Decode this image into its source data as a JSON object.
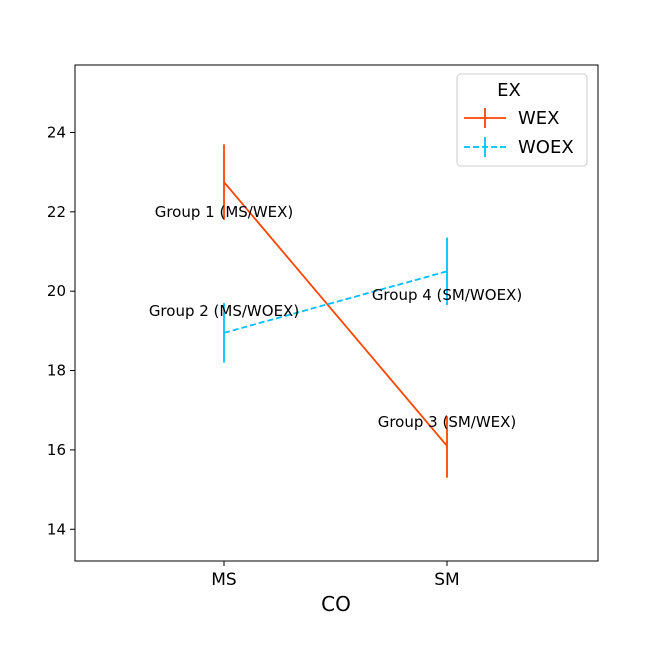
{
  "chart_data": {
    "type": "line",
    "title": "",
    "xlabel": "CO",
    "ylabel": "",
    "categories": [
      "MS",
      "SM"
    ],
    "ylim": [
      13.2,
      25.7
    ],
    "yticks": [
      14,
      16,
      18,
      20,
      22,
      24
    ],
    "grid": false,
    "legend": {
      "title": "EX",
      "placement": "top-right"
    },
    "series": [
      {
        "name": "WEX",
        "color": "#ff4500",
        "linestyle": "solid",
        "values": [
          22.75,
          16.1
        ],
        "errors": [
          [
            21.8,
            23.7
          ],
          [
            15.3,
            16.85
          ]
        ]
      },
      {
        "name": "WOEX",
        "color": "#00bfff",
        "linestyle": "dashed",
        "values": [
          18.95,
          20.5
        ],
        "errors": [
          [
            18.2,
            19.7
          ],
          [
            19.65,
            21.35
          ]
        ]
      }
    ],
    "annotations": [
      {
        "text": "Group 1 (MS/WEX)",
        "category": "MS",
        "y": 22.0
      },
      {
        "text": "Group 2 (MS/WOEX)",
        "category": "MS",
        "y": 19.5
      },
      {
        "text": "Group 3 (SM/WEX)",
        "category": "SM",
        "y": 16.7
      },
      {
        "text": "Group 4 (SM/WOEX)",
        "category": "SM",
        "y": 19.9
      }
    ]
  }
}
